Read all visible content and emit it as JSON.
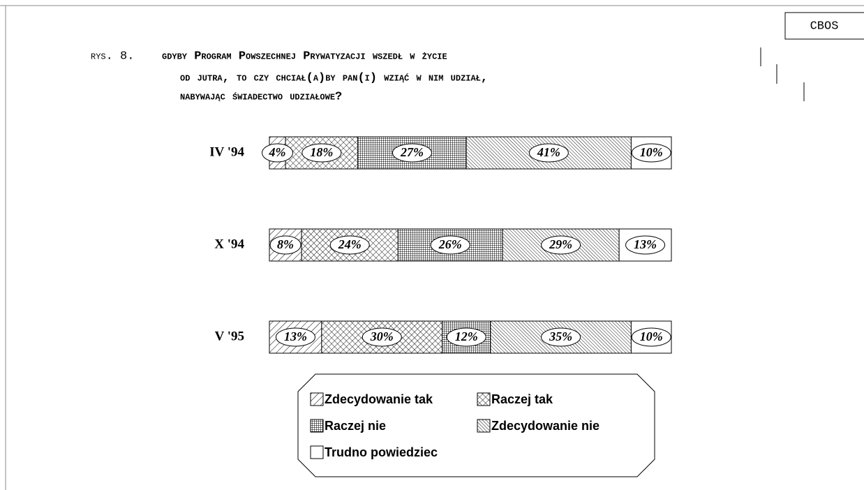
{
  "chart_data": {
    "type": "stacked-bar-horizontal",
    "source": "CBOS",
    "figure_label": "rys. 8.",
    "title": [
      "gdyby Program Powszechnej Prywatyzacji wszedł w życie",
      "od jutra, to czy chciał(a)by pan(i) wziąć w nim udział,",
      "nabywając świadectwo udziałowe?"
    ],
    "categories": [
      "IV '94",
      "X '94",
      "V '95"
    ],
    "series": [
      {
        "name": "Zdecydowanie tak",
        "color": "#000000",
        "pattern": "diagonal-sparse",
        "values": [
          4,
          8,
          13
        ],
        "value_labels": [
          "4%",
          "8%",
          "13%"
        ]
      },
      {
        "name": "Raczej tak",
        "color": "#000000",
        "pattern": "crosshatch",
        "values": [
          18,
          24,
          30
        ],
        "value_labels": [
          "18%",
          "24%",
          "30%"
        ]
      },
      {
        "name": "Raczej nie",
        "color": "#000000",
        "pattern": "grid",
        "values": [
          27,
          26,
          12
        ],
        "value_labels": [
          "27%",
          "26%",
          "12%"
        ]
      },
      {
        "name": "Zdecydowanie nie",
        "color": "#000000",
        "pattern": "diagonal-dense",
        "values": [
          41,
          29,
          35
        ],
        "value_labels": [
          "41%",
          "29%",
          "35%"
        ]
      },
      {
        "name": "Trudno powiedziec",
        "color": "#000000",
        "pattern": "none",
        "values": [
          10,
          13,
          10
        ],
        "value_labels": [
          "10%",
          "13%",
          "10%"
        ]
      }
    ],
    "legend": "bottom"
  }
}
